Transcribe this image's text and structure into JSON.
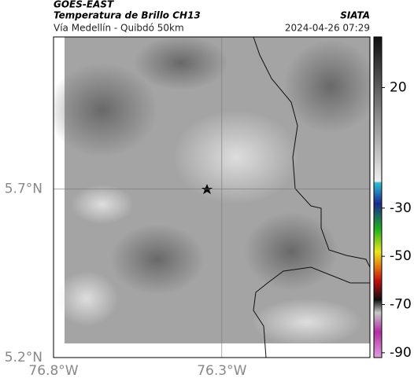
{
  "header": {
    "title": "GOES-EAST",
    "subtitle": "Temperatura de Brillo CH13",
    "region": "Vía Medellín - Quibdó 50km",
    "source": "SIATA",
    "datetime": "2024-04-26 07:29"
  },
  "map": {
    "xlim": [
      -76.8,
      -75.86
    ],
    "ylim": [
      5.2,
      6.15
    ],
    "xticks": [
      {
        "value": -76.8,
        "label": "76.8°W"
      },
      {
        "value": -76.3,
        "label": "76.3°W"
      }
    ],
    "yticks": [
      {
        "value": 5.2,
        "label": "5.2°N"
      },
      {
        "value": 5.7,
        "label": "5.7°N"
      }
    ]
  },
  "colorbar": {
    "range": [
      -92,
      41
    ],
    "ticks": [
      20,
      -30,
      -50,
      -70,
      -90
    ]
  }
}
